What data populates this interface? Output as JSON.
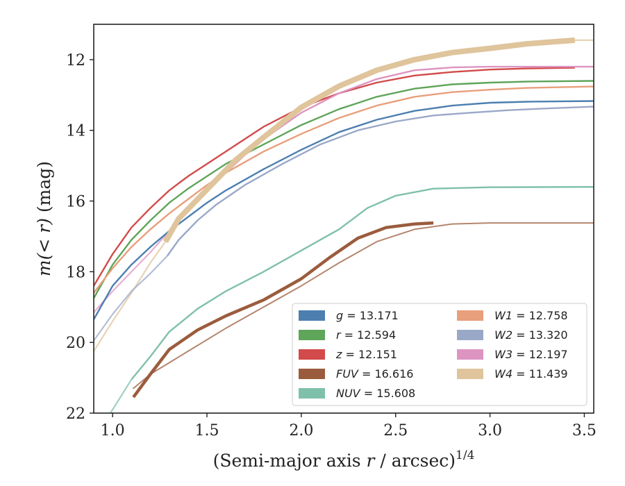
{
  "chart_data": {
    "type": "line",
    "xlabel_main": "(Semi-major axis ",
    "xlabel_var": "r",
    "xlabel_tail": " / arcsec)",
    "xlabel_exp": "1/4",
    "ylabel_main": "m(< r)",
    "ylabel_unit": " (mag)",
    "xlim": [
      0.9,
      3.55
    ],
    "ylim": [
      22,
      11
    ],
    "y_inverted": true,
    "xticks": [
      1.0,
      1.5,
      2.0,
      2.5,
      3.0,
      3.5
    ],
    "xtick_labels": [
      "1.0",
      "1.5",
      "2.0",
      "2.5",
      "3.0",
      "3.5"
    ],
    "yticks": [
      12,
      14,
      16,
      18,
      20,
      22
    ],
    "ytick_labels": [
      "12",
      "14",
      "16",
      "18",
      "20",
      "22"
    ],
    "grid": false,
    "legend_position": "lower-right",
    "series": [
      {
        "name": "g = 13.171",
        "label_var": "g",
        "label_val": " = 13.171",
        "color": "#4c7fb0",
        "points": [
          [
            0.9,
            19.35
          ],
          [
            1.0,
            18.4
          ],
          [
            1.1,
            17.8
          ],
          [
            1.2,
            17.3
          ],
          [
            1.3,
            16.85
          ],
          [
            1.4,
            16.45
          ],
          [
            1.5,
            16.05
          ],
          [
            1.6,
            15.7
          ],
          [
            1.8,
            15.1
          ],
          [
            2.0,
            14.55
          ],
          [
            2.2,
            14.05
          ],
          [
            2.4,
            13.7
          ],
          [
            2.6,
            13.45
          ],
          [
            2.8,
            13.3
          ],
          [
            3.0,
            13.22
          ],
          [
            3.2,
            13.19
          ],
          [
            3.55,
            13.17
          ]
        ]
      },
      {
        "name": "r = 12.594",
        "label_var": "r",
        "label_val": " = 12.594",
        "color": "#5fa55a",
        "points": [
          [
            0.9,
            18.75
          ],
          [
            1.0,
            17.8
          ],
          [
            1.1,
            17.1
          ],
          [
            1.2,
            16.55
          ],
          [
            1.3,
            16.05
          ],
          [
            1.4,
            15.65
          ],
          [
            1.5,
            15.3
          ],
          [
            1.6,
            14.95
          ],
          [
            1.8,
            14.4
          ],
          [
            2.0,
            13.85
          ],
          [
            2.2,
            13.4
          ],
          [
            2.4,
            13.05
          ],
          [
            2.6,
            12.82
          ],
          [
            2.8,
            12.7
          ],
          [
            3.0,
            12.65
          ],
          [
            3.2,
            12.62
          ],
          [
            3.55,
            12.6
          ]
        ]
      },
      {
        "name": "z = 12.151",
        "label_var": "z",
        "label_val": " = 12.151",
        "color": "#d24a4a",
        "points": [
          [
            0.9,
            18.4
          ],
          [
            1.0,
            17.5
          ],
          [
            1.1,
            16.75
          ],
          [
            1.2,
            16.2
          ],
          [
            1.3,
            15.7
          ],
          [
            1.4,
            15.3
          ],
          [
            1.5,
            14.95
          ],
          [
            1.6,
            14.6
          ],
          [
            1.8,
            13.9
          ],
          [
            2.0,
            13.35
          ],
          [
            2.2,
            12.95
          ],
          [
            2.4,
            12.65
          ],
          [
            2.6,
            12.45
          ],
          [
            2.8,
            12.35
          ],
          [
            3.0,
            12.28
          ],
          [
            3.2,
            12.25
          ],
          [
            3.45,
            12.23
          ]
        ]
      },
      {
        "name": "FUV = 16.616",
        "label_var": "FUV",
        "label_val": " = 16.616",
        "color": "#9b5c3d",
        "thick": true,
        "points": [
          [
            1.11,
            21.55
          ],
          [
            1.2,
            20.9
          ],
          [
            1.3,
            20.2
          ],
          [
            1.45,
            19.65
          ],
          [
            1.6,
            19.25
          ],
          [
            1.8,
            18.8
          ],
          [
            2.0,
            18.2
          ],
          [
            2.15,
            17.6
          ],
          [
            2.3,
            17.05
          ],
          [
            2.45,
            16.75
          ],
          [
            2.6,
            16.65
          ],
          [
            2.7,
            16.62
          ]
        ]
      },
      {
        "name": "NUV = 15.608",
        "label_var": "NUV",
        "label_val": " = 15.608",
        "color": "#7fc0aa",
        "points": [
          [
            1.1,
            21.05
          ],
          [
            1.2,
            20.4
          ],
          [
            1.3,
            19.7
          ],
          [
            1.45,
            19.05
          ],
          [
            1.6,
            18.55
          ],
          [
            1.8,
            18.0
          ],
          [
            2.0,
            17.4
          ],
          [
            2.2,
            16.8
          ],
          [
            2.35,
            16.2
          ],
          [
            2.5,
            15.85
          ],
          [
            2.7,
            15.65
          ],
          [
            3.0,
            15.61
          ],
          [
            3.55,
            15.6
          ]
        ]
      },
      {
        "name": "W1 = 12.758",
        "label_var": "W1",
        "label_val": " = 12.758",
        "color": "#e89f7b",
        "points": [
          [
            0.9,
            18.6
          ],
          [
            1.0,
            17.9
          ],
          [
            1.1,
            17.3
          ],
          [
            1.2,
            16.8
          ],
          [
            1.3,
            16.35
          ],
          [
            1.4,
            15.95
          ],
          [
            1.5,
            15.55
          ],
          [
            1.6,
            15.2
          ],
          [
            1.8,
            14.6
          ],
          [
            2.0,
            14.1
          ],
          [
            2.2,
            13.65
          ],
          [
            2.4,
            13.3
          ],
          [
            2.6,
            13.05
          ],
          [
            2.8,
            12.92
          ],
          [
            3.0,
            12.85
          ],
          [
            3.2,
            12.8
          ],
          [
            3.55,
            12.76
          ]
        ]
      },
      {
        "name": "W2 = 13.320",
        "label_var": "W2",
        "label_val": " = 13.320",
        "color": "#9aa8c8",
        "points": [
          [
            1.29,
            17.55
          ],
          [
            1.35,
            17.1
          ],
          [
            1.45,
            16.55
          ],
          [
            1.55,
            16.1
          ],
          [
            1.7,
            15.55
          ],
          [
            1.9,
            14.95
          ],
          [
            2.1,
            14.4
          ],
          [
            2.3,
            14.0
          ],
          [
            2.5,
            13.75
          ],
          [
            2.7,
            13.58
          ],
          [
            2.9,
            13.5
          ],
          [
            3.1,
            13.43
          ],
          [
            3.3,
            13.38
          ],
          [
            3.55,
            13.33
          ]
        ]
      },
      {
        "name": "W3 = 12.197",
        "label_var": "W3",
        "label_val": " = 12.197",
        "color": "#dd94c1",
        "points": [
          [
            1.3,
            16.85
          ],
          [
            1.4,
            16.25
          ],
          [
            1.5,
            15.7
          ],
          [
            1.6,
            15.2
          ],
          [
            1.7,
            14.7
          ],
          [
            1.8,
            14.25
          ],
          [
            2.0,
            13.5
          ],
          [
            2.2,
            12.95
          ],
          [
            2.4,
            12.55
          ],
          [
            2.6,
            12.3
          ],
          [
            2.8,
            12.22
          ],
          [
            3.0,
            12.2
          ],
          [
            3.2,
            12.2
          ],
          [
            3.55,
            12.2
          ]
        ]
      },
      {
        "name": "W4 = 11.439",
        "label_var": "W4",
        "label_val": " = 11.439",
        "color": "#dfc49c",
        "wide": true,
        "points": [
          [
            1.28,
            17.15
          ],
          [
            1.35,
            16.5
          ],
          [
            1.45,
            15.95
          ],
          [
            1.55,
            15.4
          ],
          [
            1.65,
            14.85
          ],
          [
            1.8,
            14.2
          ],
          [
            2.0,
            13.35
          ],
          [
            2.2,
            12.75
          ],
          [
            2.4,
            12.3
          ],
          [
            2.6,
            12.0
          ],
          [
            2.8,
            11.8
          ],
          [
            3.0,
            11.68
          ],
          [
            3.2,
            11.55
          ],
          [
            3.45,
            11.45
          ]
        ]
      }
    ],
    "faint_extensions": [
      {
        "series": "W4",
        "points": [
          [
            0.9,
            20.25
          ],
          [
            1.0,
            19.4
          ],
          [
            1.1,
            18.6
          ],
          [
            1.2,
            17.75
          ],
          [
            1.28,
            17.15
          ]
        ]
      },
      {
        "series": "W4",
        "points": [
          [
            3.45,
            11.45
          ],
          [
            3.55,
            11.45
          ]
        ]
      },
      {
        "series": "NUV",
        "points": [
          [
            0.9,
            22.7
          ],
          [
            1.0,
            21.9
          ],
          [
            1.1,
            21.05
          ]
        ]
      },
      {
        "series": "FUV",
        "points": [
          [
            1.11,
            21.3
          ],
          [
            1.2,
            20.9
          ],
          [
            1.4,
            20.25
          ],
          [
            1.6,
            19.6
          ],
          [
            1.8,
            19.0
          ],
          [
            2.0,
            18.4
          ],
          [
            2.2,
            17.75
          ],
          [
            2.4,
            17.15
          ],
          [
            2.6,
            16.8
          ],
          [
            2.8,
            16.65
          ],
          [
            3.0,
            16.62
          ],
          [
            3.55,
            16.62
          ]
        ]
      },
      {
        "series": "W2",
        "points": [
          [
            0.9,
            19.95
          ],
          [
            1.0,
            19.2
          ],
          [
            1.1,
            18.55
          ],
          [
            1.2,
            18.05
          ],
          [
            1.29,
            17.55
          ]
        ]
      },
      {
        "series": "W3",
        "points": [
          [
            0.9,
            19.15
          ],
          [
            1.0,
            18.55
          ],
          [
            1.1,
            18.0
          ],
          [
            1.2,
            17.45
          ],
          [
            1.3,
            16.85
          ]
        ]
      }
    ]
  }
}
